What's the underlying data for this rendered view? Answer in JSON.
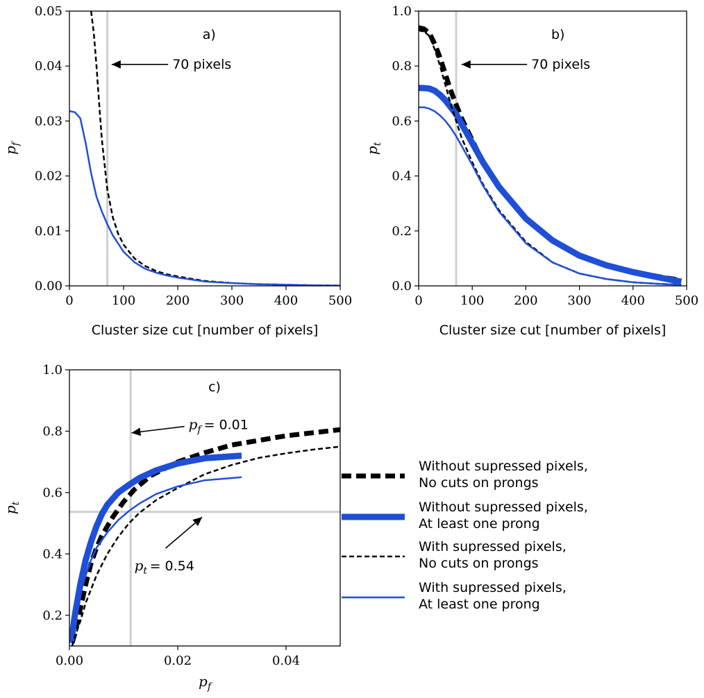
{
  "series_styles": [
    {
      "color": "#000000",
      "width": 7,
      "dash": "14,7"
    },
    {
      "color": "#1f4fd6",
      "width": 9,
      "dash": ""
    },
    {
      "color": "#000000",
      "width": 2.5,
      "dash": "7,4"
    },
    {
      "color": "#1f4fd6",
      "width": 2.5,
      "dash": ""
    }
  ],
  "cut_line_color": "#cfcfcf",
  "legend": {
    "entries": [
      {
        "line1": "Without supressed pixels,",
        "line2": "No cuts on prongs"
      },
      {
        "line1": "Without supressed pixels,",
        "line2": "At least one prong"
      },
      {
        "line1": "With supressed pixels,",
        "line2": "No cuts on prongs"
      },
      {
        "line1": "With supressed pixels,",
        "line2": "At least one prong"
      }
    ]
  },
  "chart_data": [
    {
      "type": "line",
      "panel_label": "a)",
      "xlabel": "Cluster size cut [number of pixels]",
      "ylabel": "p_f",
      "xlim": [
        0,
        500
      ],
      "ylim": [
        0,
        0.05
      ],
      "xticks": [
        0,
        100,
        200,
        300,
        400,
        500
      ],
      "xtick_labels": [
        "0",
        "100",
        "200",
        "300",
        "400",
        "500"
      ],
      "yticks": [
        0,
        0.01,
        0.02,
        0.03,
        0.04,
        0.05
      ],
      "ytick_labels": [
        "0.00",
        "0.01",
        "0.02",
        "0.03",
        "0.04",
        "0.05"
      ],
      "vline": 70,
      "annotation": {
        "text": "70 pixels",
        "text_at": [
          190,
          0.0403
        ],
        "arrow_to": [
          78,
          0.0403
        ]
      },
      "series": [
        {
          "style": 2,
          "x": [
            40,
            45,
            50,
            55,
            60,
            65,
            70,
            80,
            90,
            100,
            120,
            140,
            160,
            180,
            200,
            250,
            300,
            350,
            400,
            450,
            500
          ],
          "y": [
            0.05,
            0.046,
            0.04,
            0.033,
            0.0265,
            0.022,
            0.0175,
            0.0125,
            0.0095,
            0.0075,
            0.005,
            0.0036,
            0.0027,
            0.0021,
            0.0017,
            0.0009,
            0.0005,
            0.0003,
            0.0002,
            0.0001,
            5e-05
          ]
        },
        {
          "style": 3,
          "x": [
            0,
            10,
            20,
            30,
            40,
            50,
            60,
            70,
            80,
            90,
            100,
            120,
            140,
            160,
            180,
            200,
            250,
            300,
            350,
            400,
            450,
            500
          ],
          "y": [
            0.0318,
            0.0316,
            0.0305,
            0.026,
            0.0205,
            0.0162,
            0.0135,
            0.0112,
            0.0092,
            0.0077,
            0.0062,
            0.0043,
            0.0031,
            0.0024,
            0.0019,
            0.0015,
            0.0008,
            0.0005,
            0.0003,
            0.0002,
            0.0001,
            5e-05
          ]
        }
      ]
    },
    {
      "type": "line",
      "panel_label": "b)",
      "xlabel": "Cluster size cut [number of pixels]",
      "ylabel": "p_t",
      "xlim": [
        0,
        500
      ],
      "ylim": [
        0,
        1.0
      ],
      "xticks": [
        0,
        100,
        200,
        300,
        400,
        500
      ],
      "xtick_labels": [
        "0",
        "100",
        "200",
        "300",
        "400",
        "500"
      ],
      "yticks": [
        0,
        0.2,
        0.4,
        0.6,
        0.8,
        1.0
      ],
      "ytick_labels": [
        "0.0",
        "0.2",
        "0.4",
        "0.6",
        "0.8",
        "1.0"
      ],
      "vline": 70,
      "annotation": {
        "text": "70 pixels",
        "text_at": [
          210,
          0.806
        ],
        "arrow_to": [
          80,
          0.806
        ]
      },
      "series": [
        {
          "style": 0,
          "x": [
            0,
            10,
            20,
            30,
            40,
            50,
            60,
            70,
            80,
            100,
            120,
            150,
            200,
            250,
            300,
            350,
            400,
            450,
            490
          ],
          "y": [
            0.94,
            0.935,
            0.92,
            0.88,
            0.83,
            0.77,
            0.71,
            0.66,
            0.61,
            0.53,
            0.45,
            0.36,
            0.245,
            0.163,
            0.11,
            0.075,
            0.05,
            0.033,
            0.02
          ]
        },
        {
          "style": 1,
          "x": [
            0,
            10,
            20,
            30,
            40,
            50,
            60,
            70,
            80,
            100,
            120,
            150,
            200,
            250,
            300,
            350,
            400,
            450,
            490
          ],
          "y": [
            0.72,
            0.72,
            0.718,
            0.71,
            0.695,
            0.675,
            0.65,
            0.625,
            0.59,
            0.52,
            0.45,
            0.36,
            0.245,
            0.165,
            0.11,
            0.075,
            0.05,
            0.03,
            0.015
          ]
        },
        {
          "style": 2,
          "x": [
            0,
            10,
            20,
            30,
            40,
            50,
            60,
            70,
            80,
            100,
            120,
            150,
            200,
            250,
            300,
            350,
            400,
            450,
            490
          ],
          "y": [
            0.93,
            0.925,
            0.91,
            0.86,
            0.8,
            0.73,
            0.66,
            0.6,
            0.54,
            0.45,
            0.37,
            0.275,
            0.16,
            0.085,
            0.045,
            0.025,
            0.013,
            0.007,
            0.004
          ]
        },
        {
          "style": 3,
          "x": [
            0,
            10,
            20,
            30,
            40,
            50,
            60,
            70,
            80,
            100,
            120,
            150,
            200,
            250,
            300,
            350,
            400,
            450,
            490
          ],
          "y": [
            0.65,
            0.65,
            0.645,
            0.635,
            0.62,
            0.6,
            0.575,
            0.545,
            0.51,
            0.44,
            0.365,
            0.27,
            0.155,
            0.085,
            0.045,
            0.025,
            0.013,
            0.007,
            0.004
          ]
        }
      ]
    },
    {
      "type": "line",
      "panel_label": "c)",
      "xlabel": "p_f",
      "ylabel": "p_t",
      "xlim": [
        0,
        0.05
      ],
      "ylim": [
        0.1,
        1.0
      ],
      "xticks": [
        0,
        0.02,
        0.04
      ],
      "xtick_labels": [
        "0.00",
        "0.02",
        "0.04"
      ],
      "yticks": [
        0.2,
        0.4,
        0.6,
        0.8,
        1.0
      ],
      "ytick_labels": [
        "0.2",
        "0.4",
        "0.6",
        "0.8",
        "1.0"
      ],
      "vline": 0.0113,
      "hline": 0.537,
      "annotations": [
        {
          "text_prefix": "p_f",
          "text": " = 0.01",
          "text_at": [
            0.022,
            0.82
          ],
          "arrow_to": [
            0.0112,
            0.79
          ]
        },
        {
          "text_prefix": "p_t",
          "text": " = 0.54",
          "text_at": [
            0.012,
            0.36
          ],
          "arrow_to": [
            0.0245,
            0.52
          ]
        }
      ],
      "series": [
        {
          "style": 0,
          "x": [
            0.0005,
            0.001,
            0.002,
            0.003,
            0.004,
            0.005,
            0.006,
            0.008,
            0.01,
            0.012,
            0.015,
            0.02,
            0.025,
            0.03,
            0.035,
            0.04,
            0.045,
            0.05
          ],
          "y": [
            0.11,
            0.14,
            0.22,
            0.3,
            0.37,
            0.42,
            0.46,
            0.52,
            0.57,
            0.61,
            0.655,
            0.7,
            0.73,
            0.755,
            0.77,
            0.785,
            0.795,
            0.805
          ]
        },
        {
          "style": 1,
          "x": [
            0.0003,
            0.001,
            0.002,
            0.003,
            0.004,
            0.005,
            0.006,
            0.007,
            0.009,
            0.011,
            0.013,
            0.016,
            0.02,
            0.025,
            0.0318
          ],
          "y": [
            0.11,
            0.2,
            0.3,
            0.38,
            0.44,
            0.49,
            0.53,
            0.56,
            0.6,
            0.625,
            0.648,
            0.672,
            0.695,
            0.712,
            0.72
          ]
        },
        {
          "style": 2,
          "x": [
            0.0005,
            0.001,
            0.002,
            0.003,
            0.005,
            0.007,
            0.009,
            0.011,
            0.013,
            0.016,
            0.02,
            0.025,
            0.03,
            0.035,
            0.04,
            0.045,
            0.05
          ],
          "y": [
            0.1,
            0.13,
            0.18,
            0.24,
            0.33,
            0.4,
            0.455,
            0.5,
            0.535,
            0.575,
            0.615,
            0.66,
            0.69,
            0.713,
            0.728,
            0.74,
            0.75
          ]
        },
        {
          "style": 3,
          "x": [
            0.0003,
            0.001,
            0.002,
            0.003,
            0.004,
            0.005,
            0.007,
            0.009,
            0.011,
            0.013,
            0.016,
            0.02,
            0.025,
            0.0318
          ],
          "y": [
            0.11,
            0.19,
            0.27,
            0.33,
            0.38,
            0.42,
            0.47,
            0.51,
            0.54,
            0.565,
            0.595,
            0.62,
            0.64,
            0.65
          ]
        }
      ]
    }
  ]
}
